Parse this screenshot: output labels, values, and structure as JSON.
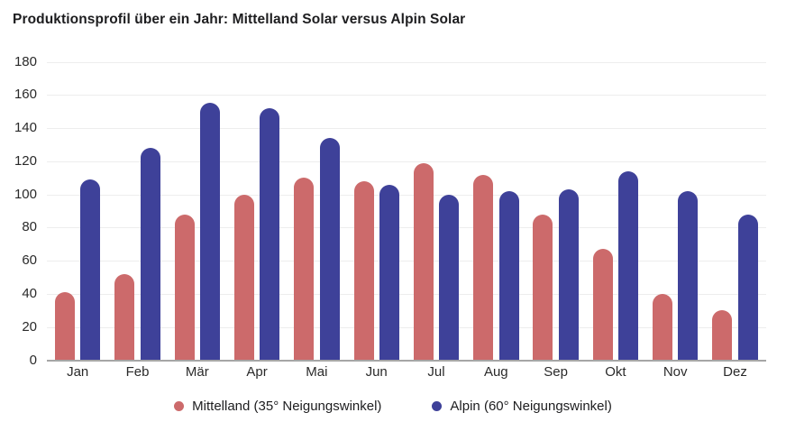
{
  "chart_data": {
    "type": "bar",
    "title": "Produktionsprofil über ein Jahr: Mittelland Solar versus Alpin Solar",
    "categories": [
      "Jan",
      "Feb",
      "Mär",
      "Apr",
      "Mai",
      "Jun",
      "Jul",
      "Aug",
      "Sep",
      "Okt",
      "Nov",
      "Dez"
    ],
    "series": [
      {
        "name": "Mittelland (35° Neigungswinkel)",
        "color": "#CC6A6B",
        "values": [
          41,
          52,
          88,
          100,
          110,
          108,
          119,
          112,
          88,
          67,
          40,
          30
        ]
      },
      {
        "name": "Alpin (60° Neigungswinkel)",
        "color": "#3E4199",
        "values": [
          109,
          128,
          155,
          152,
          134,
          106,
          100,
          102,
          103,
          114,
          102,
          88
        ]
      }
    ],
    "ylim": [
      0,
      180
    ],
    "ytick_step": 20,
    "grid": true,
    "legend_position": "bottom",
    "colors": {
      "gridline": "#EDEDED",
      "axis_line": "#A6A6A6",
      "text": "#1D1D1F"
    }
  }
}
